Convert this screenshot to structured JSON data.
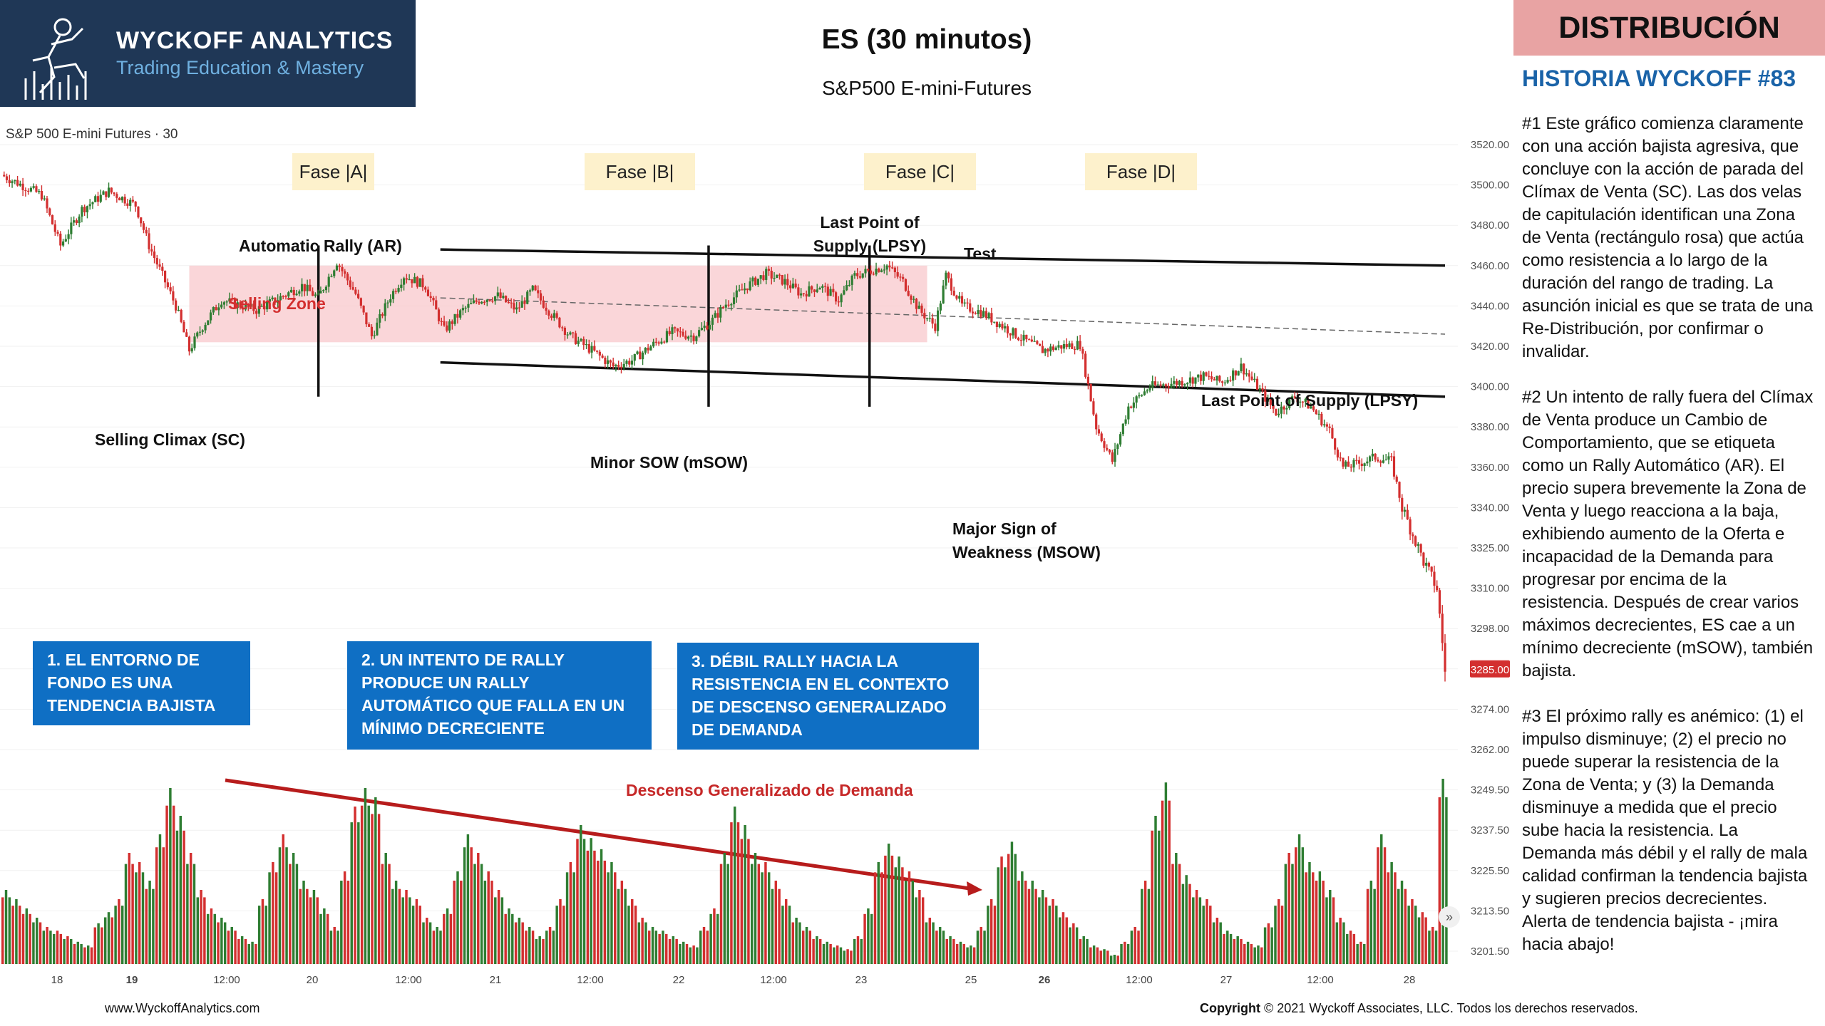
{
  "header": {
    "brand_name": "WYCKOFF ANALYTICS",
    "brand_tagline": "Trading Education & Mastery",
    "title": "ES (30 minutos)",
    "subtitle": "S&P500 E-mini-Futures",
    "tag": "DISTRIBUCIÓN",
    "story": "HISTORIA WYCKOFF #83"
  },
  "chart_label": "S&P 500 E-mini Futures · 30",
  "phases": [
    "Fase |A|",
    "Fase |B|",
    "Fase |C|",
    "Fase |D|"
  ],
  "annotations": {
    "ar": "Automatic Rally (AR)",
    "selling_zone": "Selling Zone",
    "sc": "Selling Climax (SC)",
    "msow_minor": "Minor SOW (mSOW)",
    "lpsy1": "Last Point of Supply (LPSY)",
    "test": "Test",
    "lpsy2": "Last Point of Supply (LPSY)",
    "msow_major": "Major Sign of Weakness (MSOW)",
    "demand": "Descenso Generalizado de Demanda"
  },
  "boxes": [
    "1. EL ENTORNO DE FONDO ES UNA TENDENCIA BAJISTA",
    "2. UN INTENTO DE RALLY PRODUCE UN RALLY AUTOMÁTICO QUE FALLA EN UN MÍNIMO DECRECIENTE",
    "3. DÉBIL RALLY HACIA LA RESISTENCIA EN EL CONTEXTO DE DESCENSO GENERALIZADO DE DEMANDA"
  ],
  "paragraphs": [
    "#1 Este gráfico comienza claramente con una acción bajista  agresiva, que concluye con la acción de parada del Clímax de Venta (SC). Las dos velas de capitulación identifican una Zona de Venta (rectángulo rosa) que actúa como resistencia a lo largo de la duración del rango de trading. La asunción inicial es que se trata de una Re-Distribución, por confirmar o invalidar.",
    "#2 Un intento de rally fuera del Clímax de Venta produce un Cambio de Comportamiento, que se etiqueta como un Rally Automático (AR). El precio supera brevemente la Zona de Venta y luego reacciona a la baja, exhibiendo aumento de la Oferta e incapacidad de la Demanda para progresar por encima de la resistencia.  Después de crear varios máximos decrecientes, ES cae a un mínimo decreciente (mSOW), también bajista.",
    "#3 El próximo rally es anémico: (1) el impulso disminuye; (2) el precio no puede superar la resistencia de la Zona de Venta; y (3) la Demanda disminuye a medida que el precio sube hacia la resistencia. La Demanda más débil y el rally de mala calidad confirman la tendencia bajista y sugieren precios decrecientes. Alerta de tendencia bajista - ¡mira hacia abajo!"
  ],
  "footer": {
    "website": "www.WyckoffAnalytics.com",
    "copyright_bold": "Copyright",
    "copyright_text": "© 2021 Wyckoff Associates, LLC. Todos los derechos reservados."
  },
  "colors": {
    "up": "#2e7d32",
    "down": "#d32f2f",
    "selling_zone": "#f8c8cc",
    "trend_arrow": "#b71c1c",
    "box": "#0f6fc4"
  },
  "chart_data": {
    "type": "candlestick",
    "price_axis_ticks": [
      "3520.00",
      "3500.00",
      "3480.00",
      "3460.00",
      "3440.00",
      "3420.00",
      "3400.00",
      "3380.00",
      "3360.00",
      "3340.00",
      "3325.00",
      "3310.00",
      "3298.00",
      "3285.00",
      "3274.00",
      "3262.00",
      "3249.50",
      "3237.50",
      "3225.50",
      "3213.50",
      "3201.50"
    ],
    "last_price": "3285.00",
    "x_ticks": [
      "18",
      "19",
      "12:00",
      "20",
      "12:00",
      "21",
      "12:00",
      "22",
      "12:00",
      "23",
      "25",
      "26",
      "12:00",
      "27",
      "12:00",
      "28"
    ],
    "price_path": [
      [
        0,
        3505
      ],
      [
        15,
        3495
      ],
      [
        22,
        3470
      ],
      [
        30,
        3488
      ],
      [
        40,
        3497
      ],
      [
        50,
        3490
      ],
      [
        55,
        3470
      ],
      [
        60,
        3455
      ],
      [
        65,
        3440
      ],
      [
        70,
        3418
      ],
      [
        75,
        3430
      ],
      [
        82,
        3443
      ],
      [
        95,
        3438
      ],
      [
        105,
        3445
      ],
      [
        112,
        3450
      ],
      [
        118,
        3444
      ],
      [
        125,
        3462
      ],
      [
        132,
        3446
      ],
      [
        138,
        3425
      ],
      [
        145,
        3445
      ],
      [
        150,
        3455
      ],
      [
        158,
        3450
      ],
      [
        165,
        3428
      ],
      [
        172,
        3438
      ],
      [
        178,
        3443
      ],
      [
        185,
        3445
      ],
      [
        192,
        3438
      ],
      [
        198,
        3448
      ],
      [
        205,
        3436
      ],
      [
        212,
        3425
      ],
      [
        220,
        3418
      ],
      [
        228,
        3410
      ],
      [
        235,
        3413
      ],
      [
        242,
        3420
      ],
      [
        250,
        3427
      ],
      [
        258,
        3425
      ],
      [
        265,
        3433
      ],
      [
        270,
        3441
      ],
      [
        278,
        3450
      ],
      [
        285,
        3456
      ],
      [
        292,
        3452
      ],
      [
        298,
        3446
      ],
      [
        305,
        3450
      ],
      [
        312,
        3443
      ],
      [
        318,
        3455
      ],
      [
        325,
        3458
      ],
      [
        330,
        3460
      ],
      [
        336,
        3452
      ],
      [
        342,
        3438
      ],
      [
        348,
        3430
      ],
      [
        352,
        3455
      ],
      [
        358,
        3440
      ],
      [
        365,
        3437
      ],
      [
        372,
        3431
      ],
      [
        380,
        3424
      ],
      [
        388,
        3418
      ],
      [
        395,
        3420
      ],
      [
        402,
        3421
      ],
      [
        408,
        3380
      ],
      [
        414,
        3363
      ],
      [
        420,
        3390
      ],
      [
        428,
        3400
      ],
      [
        438,
        3402
      ],
      [
        448,
        3405
      ],
      [
        455,
        3402
      ],
      [
        462,
        3410
      ],
      [
        468,
        3400
      ],
      [
        475,
        3387
      ],
      [
        482,
        3395
      ],
      [
        488,
        3390
      ],
      [
        495,
        3378
      ],
      [
        500,
        3360
      ],
      [
        506,
        3362
      ],
      [
        512,
        3365
      ],
      [
        518,
        3363
      ],
      [
        522,
        3340
      ],
      [
        526,
        3330
      ],
      [
        530,
        3320
      ],
      [
        535,
        3310
      ],
      [
        538,
        3285
      ]
    ],
    "volume_values": [
      40,
      35,
      30,
      25,
      20,
      18,
      15,
      12,
      10,
      22,
      28,
      35,
      60,
      55,
      45,
      70,
      95,
      80,
      60,
      40,
      30,
      25,
      20,
      15,
      12,
      35,
      55,
      70,
      60,
      45,
      40,
      30,
      20,
      50,
      85,
      95,
      90,
      60,
      45,
      40,
      35,
      25,
      20,
      30,
      50,
      70,
      60,
      50,
      40,
      30,
      25,
      20,
      15,
      20,
      35,
      55,
      75,
      68,
      62,
      55,
      45,
      35,
      25,
      20,
      18,
      15,
      12,
      10,
      20,
      30,
      60,
      85,
      75,
      60,
      55,
      45,
      35,
      25,
      20,
      15,
      12,
      10,
      8,
      15,
      30,
      55,
      65,
      58,
      50,
      40,
      25,
      20,
      15,
      12,
      10,
      20,
      35,
      58,
      66,
      50,
      45,
      40,
      35,
      28,
      22,
      15,
      10,
      8,
      5,
      12,
      20,
      45,
      80,
      98,
      60,
      48,
      40,
      35,
      25,
      18,
      15,
      12,
      10,
      22,
      35,
      60,
      70,
      55,
      50,
      40,
      25,
      18,
      12,
      45,
      70,
      55,
      45,
      35,
      28,
      20,
      100
    ],
    "volume_up_pattern": [
      0,
      1,
      1,
      0,
      1,
      0,
      0,
      1,
      0,
      1,
      1,
      0,
      1,
      0,
      1,
      1,
      0,
      0,
      1,
      0,
      1
    ],
    "selling_zone": [
      3422,
      3460
    ],
    "trading_range_top": [
      [
        180,
        3468
      ],
      [
        592,
        3460
      ]
    ],
    "trading_range_bottom": [
      [
        180,
        3412
      ],
      [
        592,
        3395
      ]
    ],
    "midline": [
      [
        180,
        3444
      ],
      [
        592,
        3426
      ]
    ],
    "ylim": [
      3201.5,
      3525
    ]
  }
}
